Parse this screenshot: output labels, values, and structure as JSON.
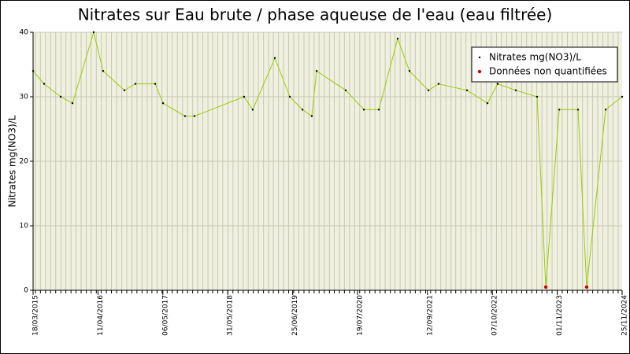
{
  "chart_data": {
    "type": "line",
    "title": "Nitrates sur Eau brute / phase aqueuse de l'eau (eau filtrée)",
    "y_label": "Nitrates mg(NO3)/L",
    "x": [
      "2015-03-18",
      "2015-05-23",
      "2015-08-31",
      "2015-11-10",
      "2016-03-16",
      "2016-05-12",
      "2016-09-17",
      "2016-11-22",
      "2017-03-21",
      "2017-05-07",
      "2017-09-16",
      "2017-11-12",
      "2018-09-06",
      "2018-10-28",
      "2019-03-10",
      "2019-06-08",
      "2019-08-23",
      "2019-10-18",
      "2019-11-16",
      "2020-05-09",
      "2020-08-26",
      "2020-11-24",
      "2021-03-17",
      "2021-05-27",
      "2021-09-18",
      "2021-11-18",
      "2022-05-08",
      "2022-09-08",
      "2022-11-08",
      "2023-02-25",
      "2023-07-03",
      "2023-08-24",
      "2023-11-13",
      "2024-03-05",
      "2024-04-26",
      "2024-08-18",
      "2024-11-25"
    ],
    "series": [
      {
        "name": "Nitrates mg(NO3)/L",
        "color": "#99cc00",
        "marker_color": "#000000",
        "values": [
          34,
          32,
          30,
          29,
          40,
          34,
          31,
          32,
          32,
          29,
          27,
          27,
          30,
          28,
          36,
          30,
          28,
          27,
          34,
          31,
          28,
          28,
          39,
          34,
          31,
          32,
          31,
          29,
          32,
          31,
          30,
          0.5,
          28,
          28,
          0.5,
          28,
          30
        ]
      },
      {
        "name": "Données non quantifiées",
        "color": "#cc0000",
        "values": [
          null,
          null,
          null,
          null,
          null,
          null,
          null,
          null,
          null,
          null,
          null,
          null,
          null,
          null,
          null,
          null,
          null,
          null,
          null,
          null,
          null,
          null,
          null,
          null,
          null,
          null,
          null,
          null,
          null,
          null,
          null,
          0.5,
          null,
          null,
          0.5,
          null,
          null
        ]
      }
    ],
    "xlim": [
      "2015-03-18",
      "2024-11-25"
    ],
    "xticks": [
      {
        "value": "2015-03-18",
        "label": "18/03/2015"
      },
      {
        "value": "2016-04-11",
        "label": "11/04/2016"
      },
      {
        "value": "2017-05-06",
        "label": "06/05/2017"
      },
      {
        "value": "2018-05-31",
        "label": "31/05/2018"
      },
      {
        "value": "2019-06-25",
        "label": "25/06/2019"
      },
      {
        "value": "2020-07-19",
        "label": "19/07/2020"
      },
      {
        "value": "2021-09-12",
        "label": "12/09/2021"
      },
      {
        "value": "2022-10-07",
        "label": "07/10/2022"
      },
      {
        "value": "2023-11-01",
        "label": "01/11/2023"
      },
      {
        "value": "2024-11-25",
        "label": "25/11/2024"
      }
    ],
    "ylim": [
      0,
      40
    ],
    "yticks": [
      0,
      10,
      20,
      30,
      40
    ],
    "grid": true,
    "legend": "top-right"
  }
}
